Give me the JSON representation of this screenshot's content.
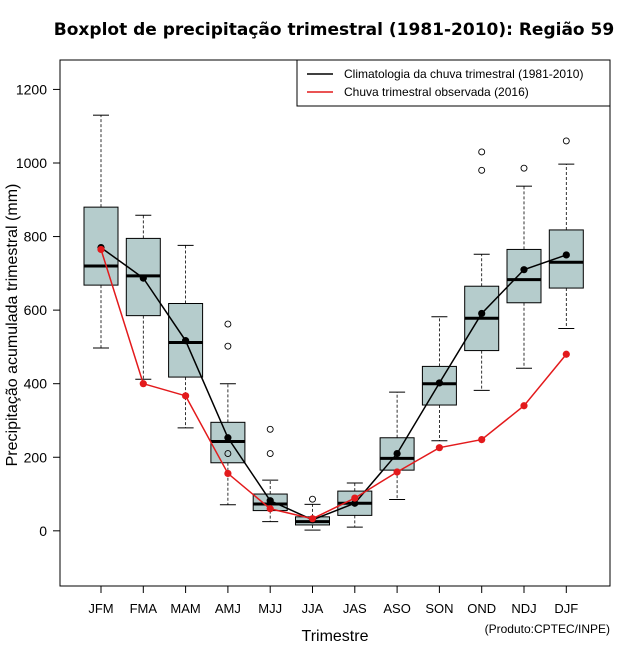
{
  "chart_data": {
    "type": "boxplot",
    "title": "Boxplot de precipitação trimestral (1981-2010): Região 59",
    "xlabel": "Trimestre",
    "ylabel": "Precipitação acumulada trimestral (mm)",
    "credit": "(Produto:CPTEC/INPE)",
    "ylim": [
      -150,
      1280
    ],
    "yticks": [
      0,
      200,
      400,
      600,
      800,
      1000,
      1200
    ],
    "categories": [
      "JFM",
      "FMA",
      "MAM",
      "AMJ",
      "MJJ",
      "JJA",
      "JAS",
      "ASO",
      "SON",
      "OND",
      "NDJ",
      "DJF"
    ],
    "boxes": [
      {
        "whisker_low": 497,
        "q1": 668,
        "median": 720,
        "q3": 880,
        "whisker_high": 1130,
        "outliers": []
      },
      {
        "whisker_low": 412,
        "q1": 585,
        "median": 693,
        "q3": 795,
        "whisker_high": 858,
        "outliers": []
      },
      {
        "whisker_low": 280,
        "q1": 418,
        "median": 512,
        "q3": 618,
        "whisker_high": 776,
        "outliers": []
      },
      {
        "whisker_low": 71,
        "q1": 185,
        "median": 243,
        "q3": 295,
        "whisker_high": 400,
        "outliers": [
          210,
          502,
          562
        ]
      },
      {
        "whisker_low": 25,
        "q1": 55,
        "median": 73,
        "q3": 100,
        "whisker_high": 138,
        "outliers": [
          210,
          276
        ]
      },
      {
        "whisker_low": 2,
        "q1": 16,
        "median": 25,
        "q3": 38,
        "whisker_high": 72,
        "outliers": [
          86
        ]
      },
      {
        "whisker_low": 10,
        "q1": 42,
        "median": 75,
        "q3": 108,
        "whisker_high": 130,
        "outliers": []
      },
      {
        "whisker_low": 85,
        "q1": 165,
        "median": 197,
        "q3": 253,
        "whisker_high": 377,
        "outliers": []
      },
      {
        "whisker_low": 245,
        "q1": 342,
        "median": 400,
        "q3": 447,
        "whisker_high": 582,
        "outliers": []
      },
      {
        "whisker_low": 382,
        "q1": 490,
        "median": 578,
        "q3": 665,
        "whisker_high": 752,
        "outliers": [
          980,
          1030
        ]
      },
      {
        "whisker_low": 442,
        "q1": 620,
        "median": 683,
        "q3": 765,
        "whisker_high": 937,
        "outliers": [
          986
        ]
      },
      {
        "whisker_low": 550,
        "q1": 660,
        "median": 730,
        "q3": 818,
        "whisker_high": 997,
        "outliers": [
          1060
        ]
      }
    ],
    "series": [
      {
        "name": "Climatologia da chuva trimestral (1981-2010)",
        "color": "#000000",
        "values": [
          770,
          687,
          517,
          253,
          82,
          30,
          75,
          210,
          402,
          591,
          710,
          750
        ]
      },
      {
        "name": "Chuva trimestral observada (2016)",
        "color": "#e31a1c",
        "values": [
          765,
          400,
          367,
          156,
          60,
          33,
          89,
          160,
          226,
          248,
          340,
          480
        ]
      }
    ],
    "legend_position": "top-right",
    "box_fill": "#b5cccc"
  }
}
